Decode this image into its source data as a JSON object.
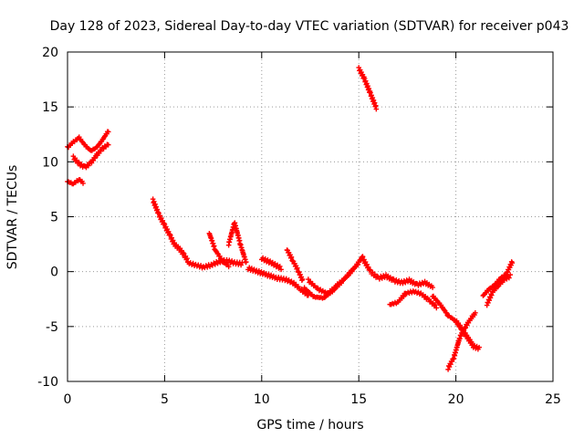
{
  "chart_data": {
    "type": "scatter",
    "title": "Day 128 of 2023, Sidereal Day-to-day VTEC variation (SDTVAR) for receiver p043",
    "xlabel": "GPS time / hours",
    "ylabel": "SDTVAR / TECUs",
    "xlim": [
      0,
      25
    ],
    "ylim": [
      -10,
      20
    ],
    "xticks": [
      0,
      5,
      10,
      15,
      20,
      25
    ],
    "yticks": [
      -10,
      -5,
      0,
      5,
      10,
      15,
      20
    ],
    "grid": true,
    "marker": "+",
    "color": "#ff0000",
    "series": [
      {
        "name": "SDTVAR",
        "segments": [
          {
            "x": [
              0.0,
              0.3,
              0.6,
              0.8
            ],
            "y": [
              8.2,
              8.0,
              8.4,
              8.1
            ]
          },
          {
            "x": [
              0.0,
              0.3,
              0.6,
              0.9,
              1.2,
              1.5,
              1.8,
              2.1
            ],
            "y": [
              11.3,
              11.8,
              12.2,
              11.5,
              11.0,
              11.3,
              12.0,
              12.8
            ]
          },
          {
            "x": [
              0.3,
              0.6,
              0.9,
              1.2,
              1.5,
              1.8,
              2.1
            ],
            "y": [
              10.4,
              9.8,
              9.5,
              9.9,
              10.6,
              11.2,
              11.6
            ]
          },
          {
            "x": [
              4.4,
              4.7,
              5.0,
              5.3,
              5.5,
              5.8,
              6.0,
              6.2
            ],
            "y": [
              6.5,
              5.2,
              4.2,
              3.2,
              2.5,
              2.0,
              1.5,
              1.0
            ]
          },
          {
            "x": [
              6.2,
              6.6,
              7.0,
              7.4,
              7.8,
              8.2,
              8.6,
              9.0
            ],
            "y": [
              0.8,
              0.6,
              0.4,
              0.6,
              0.9,
              1.0,
              0.8,
              0.7
            ]
          },
          {
            "x": [
              7.3,
              7.6,
              8.0,
              8.3
            ],
            "y": [
              3.5,
              2.0,
              0.9,
              0.5
            ]
          },
          {
            "x": [
              8.3,
              8.6,
              8.9,
              9.2
            ],
            "y": [
              2.5,
              4.5,
              2.5,
              0.8
            ]
          },
          {
            "x": [
              9.3,
              9.8,
              10.3,
              10.8,
              11.2,
              11.6,
              12.0,
              12.4
            ],
            "y": [
              0.3,
              0.0,
              -0.3,
              -0.6,
              -0.7,
              -1.0,
              -1.6,
              -2.2
            ]
          },
          {
            "x": [
              10.0,
              10.5,
              11.0
            ],
            "y": [
              1.2,
              0.8,
              0.3
            ]
          },
          {
            "x": [
              11.3,
              11.6,
              11.9,
              12.1
            ],
            "y": [
              2.0,
              1.0,
              0.0,
              -0.8
            ]
          },
          {
            "x": [
              12.2,
              12.7,
              13.2,
              13.7,
              14.2,
              14.7,
              15.0
            ],
            "y": [
              -1.5,
              -2.3,
              -2.4,
              -1.7,
              -0.8,
              0.2,
              0.8
            ]
          },
          {
            "x": [
              12.4,
              12.9,
              13.4,
              13.9,
              14.4,
              14.9,
              15.2
            ],
            "y": [
              -0.8,
              -1.6,
              -2.0,
              -1.2,
              -0.4,
              0.6,
              1.4
            ]
          },
          {
            "x": [
              15.2,
              15.6,
              16.0,
              16.4,
              16.8,
              17.2,
              17.6,
              18.0,
              18.4,
              18.8
            ],
            "y": [
              1.2,
              0.0,
              -0.6,
              -0.4,
              -0.8,
              -1.0,
              -0.8,
              -1.2,
              -1.0,
              -1.4
            ]
          },
          {
            "x": [
              15.0,
              15.3,
              15.6,
              15.9
            ],
            "y": [
              18.5,
              17.5,
              16.2,
              14.9
            ]
          },
          {
            "x": [
              16.6,
              17.0,
              17.4,
              17.8,
              18.2,
              18.6,
              19.0
            ],
            "y": [
              -3.0,
              -2.8,
              -2.0,
              -1.8,
              -2.0,
              -2.6,
              -3.2
            ]
          },
          {
            "x": [
              18.8,
              19.2,
              19.6,
              20.0,
              20.4,
              20.8
            ],
            "y": [
              -2.2,
              -3.0,
              -4.0,
              -4.5,
              -5.5,
              -6.5
            ]
          },
          {
            "x": [
              19.6,
              19.9,
              20.2,
              20.5,
              20.8,
              21.0
            ],
            "y": [
              -8.8,
              -7.8,
              -6.0,
              -5.0,
              -4.2,
              -3.8
            ]
          },
          {
            "x": [
              20.0,
              20.3,
              20.6,
              20.9,
              21.2
            ],
            "y": [
              -4.5,
              -5.2,
              -6.0,
              -6.8,
              -7.0
            ]
          },
          {
            "x": [
              21.6,
              21.9,
              22.2,
              22.5,
              22.8
            ],
            "y": [
              -3.0,
              -1.8,
              -1.2,
              -0.7,
              -0.4
            ]
          },
          {
            "x": [
              21.4,
              21.7,
              22.0,
              22.3,
              22.6,
              22.9
            ],
            "y": [
              -2.2,
              -1.6,
              -1.2,
              -0.6,
              -0.2,
              0.9
            ]
          }
        ]
      }
    ]
  }
}
